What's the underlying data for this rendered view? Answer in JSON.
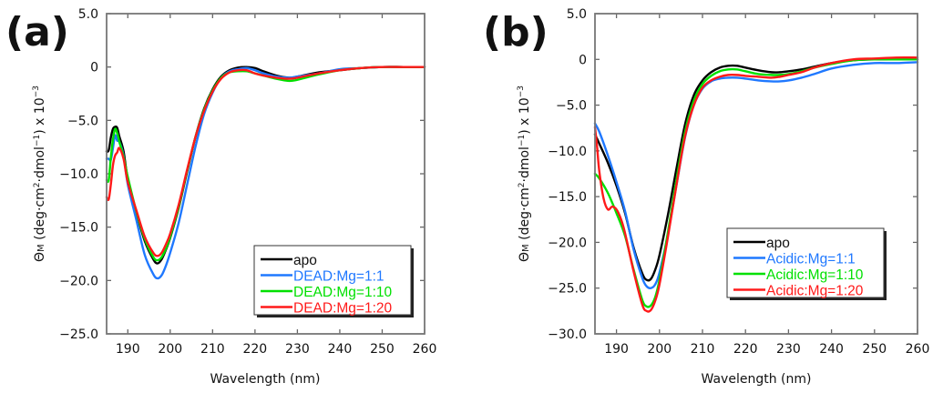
{
  "chart_data": [
    {
      "type": "line",
      "panel_label": "(a)",
      "title": "",
      "xlabel": "Wavelength (nm)",
      "ylabel": "ΘM (deg·cm²·dmol⁻¹) x 10⁻³",
      "ylabel_parts": {
        "theta": "Θ",
        "sub": "M",
        "unit": " (deg·cm",
        "sup2": "2",
        "mid": "·dmol",
        "supm1": "−1",
        "end": ") x 10",
        "supm3": "−3"
      },
      "xlim": [
        185,
        260
      ],
      "ylim": [
        -25,
        5
      ],
      "xticks": [
        190,
        200,
        210,
        220,
        230,
        240,
        250,
        260
      ],
      "xtick_labels": [
        "190",
        "200",
        "210",
        "220",
        "230",
        "240",
        "250",
        "260"
      ],
      "yticks": [
        5,
        0,
        -5,
        -10,
        -15,
        -20,
        -25
      ],
      "ytick_labels": [
        "5.0",
        "0",
        "−5.0",
        "−10.0",
        "−15.0",
        "−20.0",
        "−25.0"
      ],
      "grid": false,
      "legend_position": "bottom-right",
      "series": [
        {
          "name": "apo",
          "color": "#000000",
          "x": [
            185,
            185.5,
            186,
            186.5,
            187,
            187.5,
            188,
            189,
            190,
            192,
            194,
            196,
            197,
            198,
            199,
            200,
            202,
            204,
            206,
            208,
            210,
            212,
            214,
            216,
            218,
            220,
            222,
            225,
            228,
            230,
            235,
            240,
            245,
            250,
            255,
            260
          ],
          "y": [
            -7.9,
            -7.8,
            -6.6,
            -5.8,
            -5.6,
            -5.7,
            -6.5,
            -7.9,
            -10.5,
            -13.6,
            -16.3,
            -18.0,
            -18.4,
            -18.0,
            -17.1,
            -16.0,
            -13.2,
            -9.8,
            -6.5,
            -3.9,
            -2.1,
            -0.9,
            -0.3,
            -0.05,
            0.0,
            -0.1,
            -0.4,
            -0.8,
            -1.0,
            -0.9,
            -0.5,
            -0.3,
            -0.1,
            0.0,
            0.0,
            0.0
          ]
        },
        {
          "name": "DEAD:Mg=1:1",
          "color": "#1f78ff",
          "x": [
            185,
            185.5,
            186,
            186.5,
            187,
            187.5,
            188,
            189,
            190,
            192,
            194,
            196,
            197,
            198,
            199,
            200,
            202,
            204,
            206,
            208,
            210,
            212,
            214,
            216,
            218,
            220,
            222,
            225,
            228,
            230,
            235,
            240,
            245,
            250,
            255,
            260
          ],
          "y": [
            -8.6,
            -8.6,
            -8.7,
            -7.6,
            -6.4,
            -6.9,
            -7.0,
            -8.3,
            -11.0,
            -14.3,
            -17.6,
            -19.4,
            -19.8,
            -19.5,
            -18.6,
            -17.4,
            -14.6,
            -11.0,
            -7.4,
            -4.4,
            -2.4,
            -1.0,
            -0.4,
            -0.2,
            -0.1,
            -0.3,
            -0.6,
            -0.9,
            -1.0,
            -0.9,
            -0.6,
            -0.2,
            -0.1,
            0.0,
            0.0,
            0.0
          ]
        },
        {
          "name": "DEAD:Mg=1:10",
          "color": "#00e000",
          "x": [
            185,
            185.5,
            186,
            186.5,
            187,
            187.5,
            188,
            189,
            190,
            192,
            194,
            196,
            197,
            198,
            199,
            200,
            202,
            204,
            206,
            208,
            210,
            212,
            214,
            216,
            218,
            220,
            222,
            225,
            228,
            230,
            235,
            240,
            245,
            250,
            255,
            260
          ],
          "y": [
            -10.6,
            -10.6,
            -8.5,
            -6.8,
            -5.8,
            -6.2,
            -7.0,
            -8.4,
            -10.3,
            -13.5,
            -16.1,
            -17.8,
            -18.1,
            -17.8,
            -17.0,
            -15.9,
            -13.1,
            -9.7,
            -6.5,
            -4.0,
            -2.2,
            -1.0,
            -0.5,
            -0.4,
            -0.4,
            -0.6,
            -0.8,
            -1.1,
            -1.3,
            -1.2,
            -0.7,
            -0.3,
            -0.1,
            0.0,
            0.0,
            0.0
          ]
        },
        {
          "name": "DEAD:Mg=1:20",
          "color": "#ff1a1a",
          "x": [
            185,
            185.5,
            186,
            186.5,
            187,
            187.5,
            188,
            189,
            190,
            192,
            194,
            196,
            197,
            198,
            199,
            200,
            202,
            204,
            206,
            208,
            210,
            212,
            214,
            216,
            218,
            220,
            222,
            225,
            228,
            230,
            235,
            240,
            245,
            250,
            255,
            260
          ],
          "y": [
            -12.2,
            -12.4,
            -11.0,
            -9.2,
            -8.3,
            -8.0,
            -7.6,
            -8.6,
            -10.8,
            -13.4,
            -15.9,
            -17.4,
            -17.7,
            -17.4,
            -16.6,
            -15.6,
            -12.9,
            -9.6,
            -6.5,
            -4.1,
            -2.3,
            -1.1,
            -0.5,
            -0.3,
            -0.3,
            -0.6,
            -0.8,
            -1.0,
            -1.1,
            -1.0,
            -0.6,
            -0.3,
            -0.1,
            0.0,
            0.0,
            0.0
          ]
        }
      ]
    },
    {
      "type": "line",
      "panel_label": "(b)",
      "title": "",
      "xlabel": "Wavelength (nm)",
      "ylabel": "ΘM (deg·cm²·dmol⁻¹) x 10⁻³",
      "ylabel_parts": {
        "theta": "Θ",
        "sub": "M",
        "unit": " (deg·cm",
        "sup2": "2",
        "mid": "·dmol",
        "supm1": "−1",
        "end": ") x 10",
        "supm3": "−3"
      },
      "xlim": [
        185,
        260
      ],
      "ylim": [
        -30,
        5
      ],
      "xticks": [
        190,
        200,
        210,
        220,
        230,
        240,
        250,
        260
      ],
      "xtick_labels": [
        "190",
        "200",
        "210",
        "220",
        "230",
        "240",
        "250",
        "260"
      ],
      "yticks": [
        5,
        0,
        -5,
        -10,
        -15,
        -20,
        -25,
        -30
      ],
      "ytick_labels": [
        "5.0",
        "0",
        "−5.0",
        "−10.0",
        "−15.0",
        "−20.0",
        "−25.0",
        "−30.0"
      ],
      "grid": false,
      "legend_position": "bottom-right",
      "series": [
        {
          "name": "apo",
          "color": "#000000",
          "x": [
            185,
            186,
            188,
            190,
            192,
            194,
            196,
            197,
            198,
            199,
            200,
            202,
            204,
            206,
            208,
            210,
            212,
            214,
            216,
            218,
            220,
            223,
            226,
            228,
            230,
            233,
            236,
            240,
            245,
            250,
            255,
            260
          ],
          "y": [
            -8.2,
            -9.2,
            -11.3,
            -13.8,
            -16.8,
            -20.6,
            -23.4,
            -24.1,
            -24.0,
            -23.0,
            -21.4,
            -16.9,
            -11.8,
            -7.0,
            -3.9,
            -2.3,
            -1.4,
            -0.9,
            -0.7,
            -0.7,
            -0.9,
            -1.2,
            -1.4,
            -1.4,
            -1.3,
            -1.1,
            -0.8,
            -0.4,
            -0.1,
            0.0,
            0.0,
            0.0
          ]
        },
        {
          "name": "Acidic:Mg=1:1",
          "color": "#1f78ff",
          "x": [
            185,
            186,
            188,
            190,
            192,
            194,
            196,
            197,
            198,
            199,
            200,
            202,
            204,
            206,
            208,
            210,
            212,
            214,
            216,
            218,
            220,
            223,
            226,
            228,
            230,
            233,
            236,
            240,
            245,
            250,
            255,
            260
          ],
          "y": [
            -7.0,
            -7.9,
            -10.5,
            -13.4,
            -16.6,
            -20.8,
            -23.9,
            -24.8,
            -25.0,
            -24.6,
            -23.3,
            -19.0,
            -13.6,
            -8.4,
            -5.0,
            -3.2,
            -2.4,
            -2.1,
            -2.0,
            -2.0,
            -2.1,
            -2.3,
            -2.4,
            -2.4,
            -2.3,
            -2.0,
            -1.6,
            -1.0,
            -0.6,
            -0.4,
            -0.4,
            -0.3
          ]
        },
        {
          "name": "Acidic:Mg=1:10",
          "color": "#00e000",
          "x": [
            185,
            186,
            188,
            190,
            192,
            194,
            196,
            197,
            198,
            199,
            200,
            202,
            204,
            206,
            208,
            210,
            212,
            214,
            216,
            218,
            220,
            223,
            226,
            228,
            230,
            233,
            236,
            240,
            245,
            250,
            255,
            260
          ],
          "y": [
            -12.5,
            -13.0,
            -14.6,
            -16.8,
            -19.3,
            -23.0,
            -26.3,
            -27.0,
            -26.9,
            -26.0,
            -24.1,
            -18.8,
            -13.0,
            -7.8,
            -4.5,
            -2.7,
            -1.8,
            -1.3,
            -1.1,
            -1.1,
            -1.3,
            -1.6,
            -1.7,
            -1.7,
            -1.6,
            -1.3,
            -0.9,
            -0.5,
            -0.1,
            0.0,
            0.0,
            0.0
          ]
        },
        {
          "name": "Acidic:Mg=1:20",
          "color": "#ff1a1a",
          "x": [
            185,
            185.5,
            186,
            187,
            188,
            189,
            190,
            191,
            192,
            194,
            196,
            197,
            198,
            199,
            200,
            202,
            204,
            206,
            208,
            210,
            212,
            214,
            216,
            218,
            220,
            223,
            226,
            228,
            230,
            233,
            236,
            240,
            245,
            250,
            255,
            260
          ],
          "y": [
            -7.4,
            -9.6,
            -12.2,
            -15.2,
            -16.4,
            -16.1,
            -16.4,
            -17.4,
            -19.0,
            -23.2,
            -26.8,
            -27.5,
            -27.4,
            -26.4,
            -24.6,
            -19.3,
            -13.6,
            -8.3,
            -5.0,
            -3.1,
            -2.3,
            -1.9,
            -1.7,
            -1.7,
            -1.8,
            -1.9,
            -2.0,
            -1.9,
            -1.7,
            -1.4,
            -0.9,
            -0.4,
            0.0,
            0.1,
            0.2,
            0.2
          ]
        }
      ]
    }
  ]
}
